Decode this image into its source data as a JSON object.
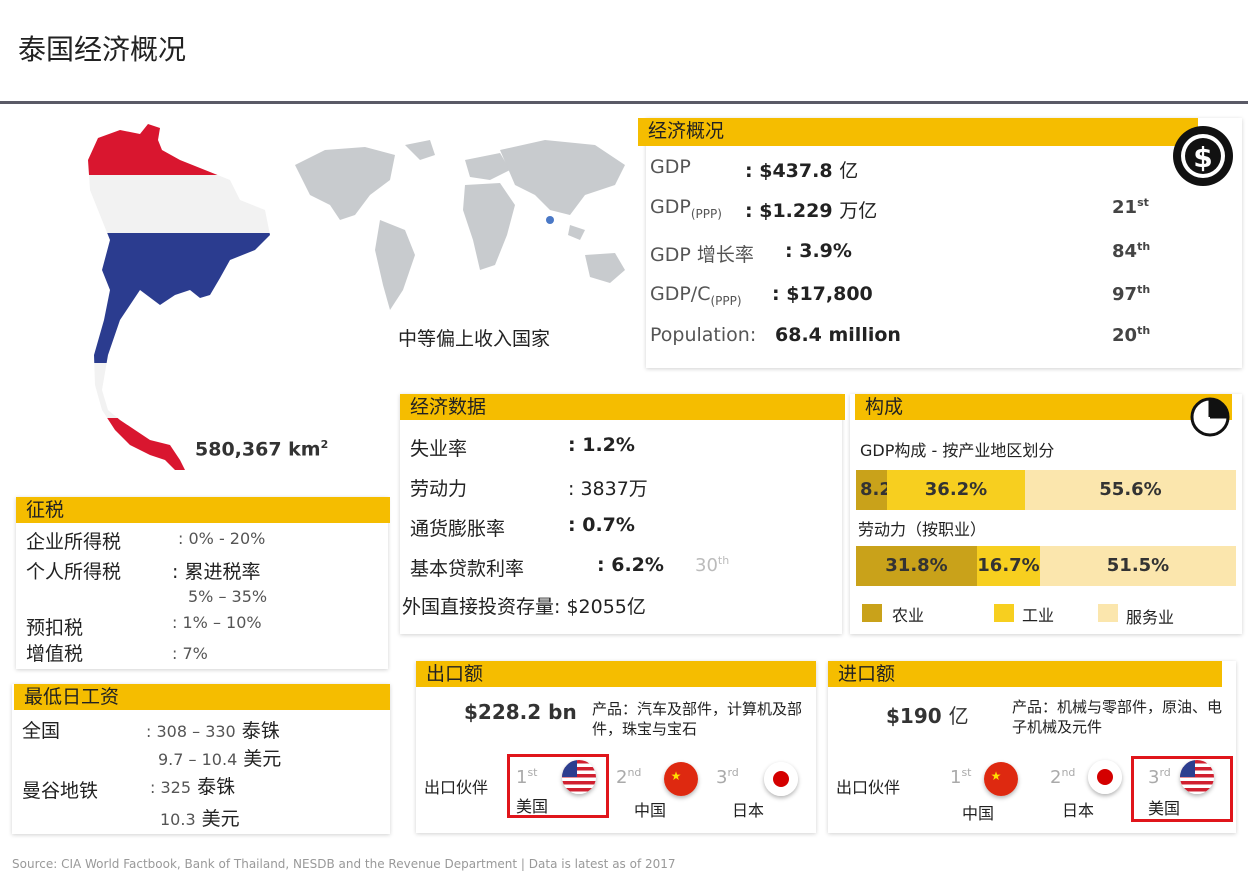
{
  "header": {
    "title": "泰国经济概况"
  },
  "country": {
    "area": "580,367 km",
    "area_sup": "2",
    "income_class": "中等偏上收入国家"
  },
  "economy": {
    "heading": "经济概况",
    "rows": [
      {
        "label": "GDP",
        "sub": "",
        "sep": ":",
        "value": "$437.8",
        "unit": "亿",
        "rank": "",
        "rank_sup": ""
      },
      {
        "label": "GDP",
        "sub": "(PPP)",
        "sep": ":",
        "value": "$1.229",
        "unit": "万亿",
        "rank": "21",
        "rank_sup": "st"
      },
      {
        "label": "GDP 增长率",
        "sub": "",
        "sep": ":",
        "value": "3.9%",
        "unit": "",
        "rank": "84",
        "rank_sup": "th"
      },
      {
        "label": "GDP/C",
        "sub": "(PPP)",
        "sep": ":",
        "value": "$17,800",
        "unit": "",
        "rank": "97",
        "rank_sup": "th"
      },
      {
        "label": "Population",
        "sub": "",
        "sep": ":",
        "value": "68.4 million",
        "unit": "",
        "rank": "20",
        "rank_sup": "th"
      }
    ]
  },
  "econ_data": {
    "heading": "经济数据",
    "unemployment": {
      "label": "失业率",
      "value": "1.2%"
    },
    "labor": {
      "label": "劳动力",
      "value": "3837万"
    },
    "inflation": {
      "label": "通货膨胀率",
      "value": "0.7%"
    },
    "lending": {
      "label": "基本贷款利率",
      "value": "6.2%",
      "rank": "30",
      "rank_sup": "th"
    },
    "fdi": {
      "label": "外国直接投资存量:",
      "value": "$2055亿"
    }
  },
  "composition": {
    "heading": "构成",
    "gdp_label": "GDP构成 - 按产业地区划分",
    "labor_label": "劳动力（按职业）",
    "gdp_shares": [
      8.2,
      36.2,
      55.6
    ],
    "gdp_texts": [
      "8.2%",
      "36.2%",
      "55.6%"
    ],
    "labor_shares": [
      31.8,
      16.7,
      51.5
    ],
    "labor_texts": [
      "31.8%",
      "16.7%",
      "51.5%"
    ],
    "colors": {
      "agriculture": "#c9a21a",
      "industry": "#f7cf1f",
      "services": "#fbe6ad"
    },
    "legend": [
      "农业",
      "工业",
      "服务业"
    ]
  },
  "tax": {
    "heading": "征税",
    "corporate": {
      "label": "企业所得税",
      "value": ":  0% - 20%"
    },
    "personal": {
      "label": "个人所得税",
      "value": ":  累进税率",
      "value2": "5% – 35%"
    },
    "withholding": {
      "label": "预扣税",
      "value": ":  1% – 10%"
    },
    "vat": {
      "label": "增值税",
      "value": ":  7%"
    }
  },
  "min_wage": {
    "heading": "最低日工资",
    "national": {
      "label": "全国",
      "value": ": 308 – 330",
      "unit": "泰铢",
      "value2": "9.7 – 10.4",
      "unit2": "美元"
    },
    "bangkok": {
      "label": "曼谷地铁",
      "value": ": 325",
      "unit": "泰铢",
      "value2": "10.3",
      "unit2": "美元"
    }
  },
  "exports": {
    "heading": "出口额",
    "amount": "$228.2 bn",
    "products": "产品：汽车及部件，计算机及部件，珠宝与宝石",
    "partners_label": "出口伙伴",
    "partners": [
      {
        "rank": "1",
        "sup": "st",
        "name": "美国",
        "flag": "us-flag-icon"
      },
      {
        "rank": "2",
        "sup": "nd",
        "name": "中国",
        "flag": "china-flag-icon"
      },
      {
        "rank": "3",
        "sup": "rd",
        "name": "日本",
        "flag": "japan-flag-icon"
      }
    ]
  },
  "imports": {
    "heading": "进口额",
    "amount": "$190",
    "unit": "亿",
    "products": "产品：机械与零部件，原油、电子机械及元件",
    "partners_label": "出口伙伴",
    "partners": [
      {
        "rank": "1",
        "sup": "st",
        "name": "中国",
        "flag": "china-flag-icon"
      },
      {
        "rank": "2",
        "sup": "nd",
        "name": "日本",
        "flag": "japan-flag-icon"
      },
      {
        "rank": "3",
        "sup": "rd",
        "name": "美国",
        "flag": "us-flag-icon"
      }
    ]
  },
  "footer": {
    "source": "Source: CIA World Factbook, Bank of Thailand, NESDB and the Revenue Department | Data is latest as of 2017"
  }
}
